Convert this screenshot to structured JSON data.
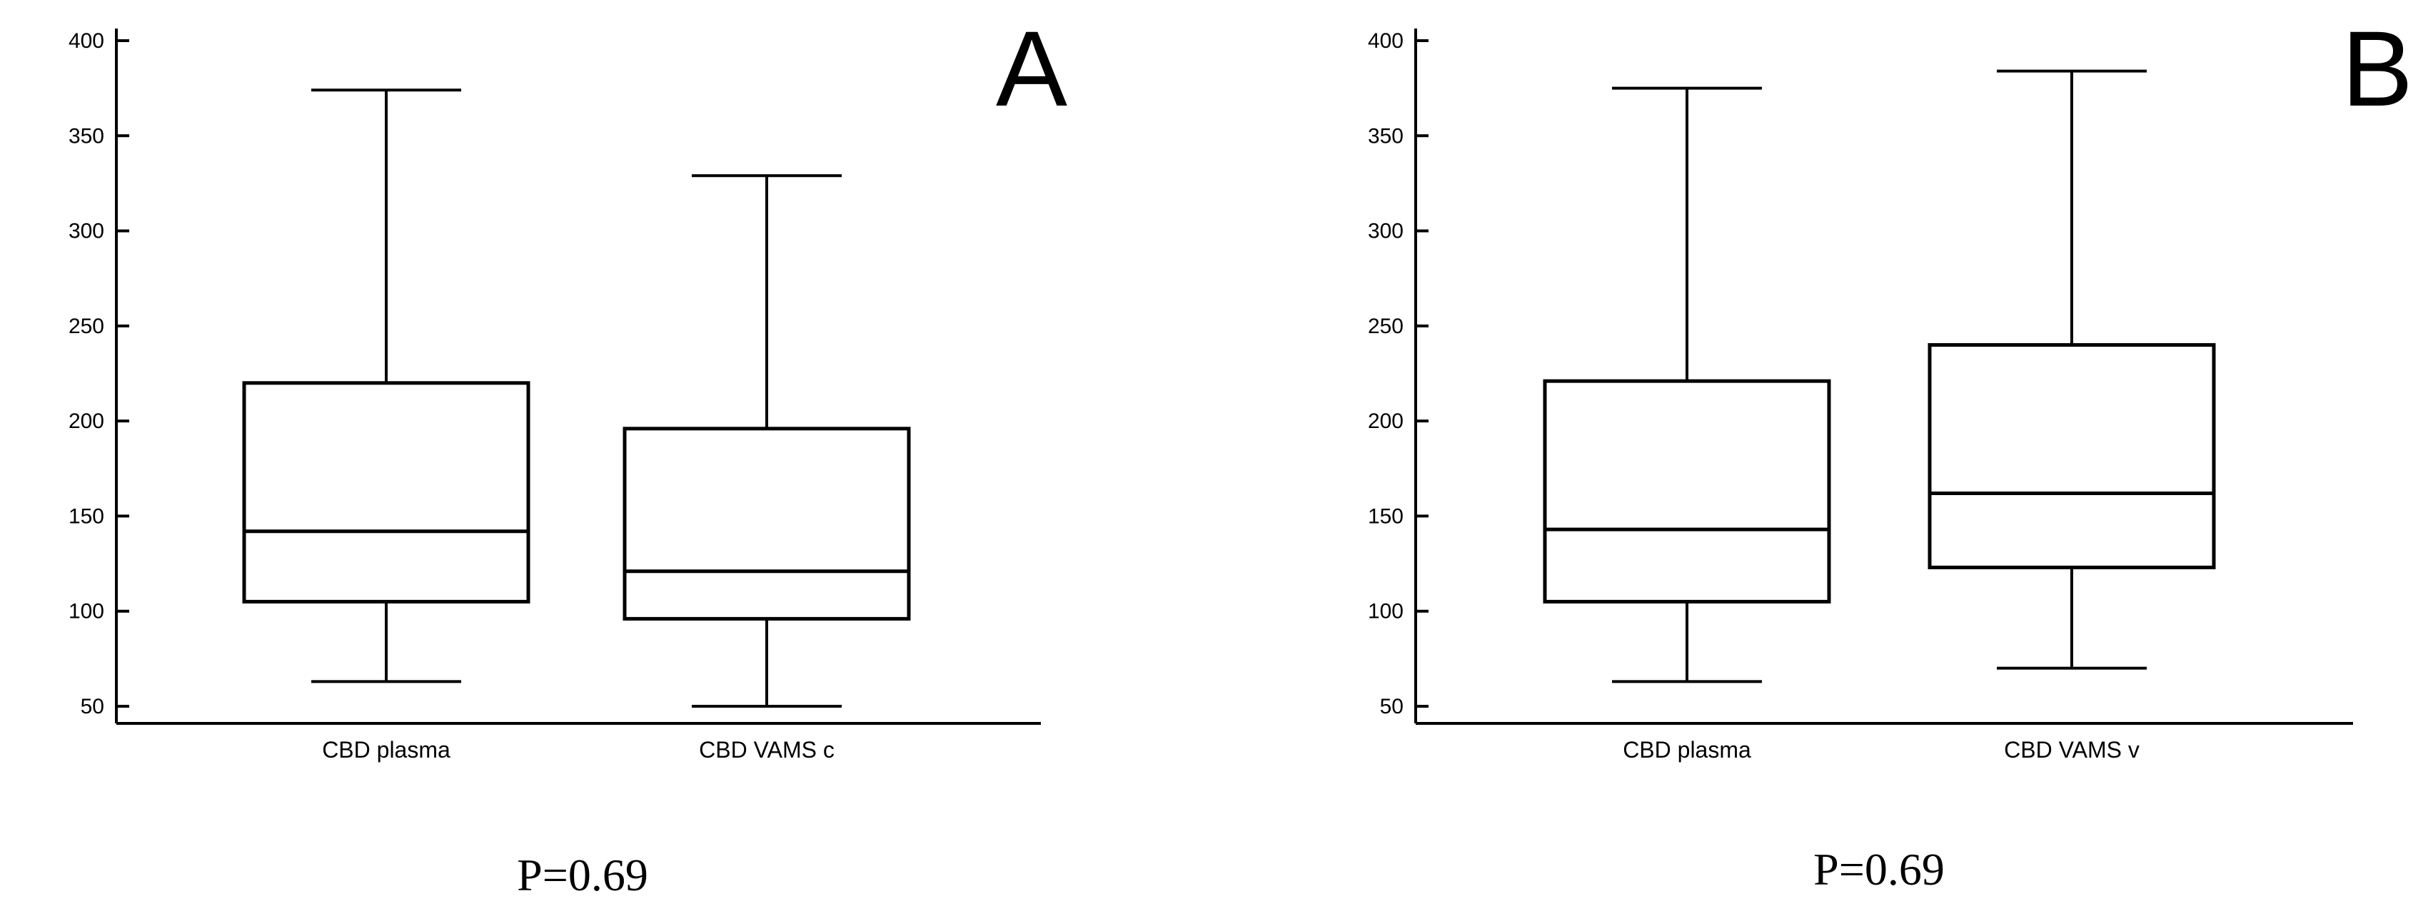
{
  "chart_data": [
    {
      "type": "box",
      "panel_label": "A",
      "annotation": "P=0.69",
      "ylim": [
        40,
        405
      ],
      "yticks": [
        50,
        100,
        150,
        200,
        250,
        300,
        350,
        400
      ],
      "categories": [
        "CBD plasma",
        "CBD VAMS c"
      ],
      "boxes": [
        {
          "category": "CBD plasma",
          "min": 63,
          "q1": 105,
          "median": 142,
          "q3": 220,
          "max": 374
        },
        {
          "category": "CBD VAMS c",
          "min": 50,
          "q1": 96,
          "median": 121,
          "q3": 196,
          "max": 329
        }
      ],
      "grid": false
    },
    {
      "type": "box",
      "panel_label": "B",
      "annotation": "P=0.69",
      "ylim": [
        40,
        405
      ],
      "yticks": [
        50,
        100,
        150,
        200,
        250,
        300,
        350,
        400
      ],
      "categories": [
        "CBD plasma",
        "CBD VAMS v"
      ],
      "boxes": [
        {
          "category": "CBD plasma",
          "min": 63,
          "q1": 105,
          "median": 143,
          "q3": 221,
          "max": 375
        },
        {
          "category": "CBD VAMS v",
          "min": 70,
          "q1": 123,
          "median": 162,
          "q3": 240,
          "max": 384
        }
      ],
      "grid": false
    }
  ]
}
